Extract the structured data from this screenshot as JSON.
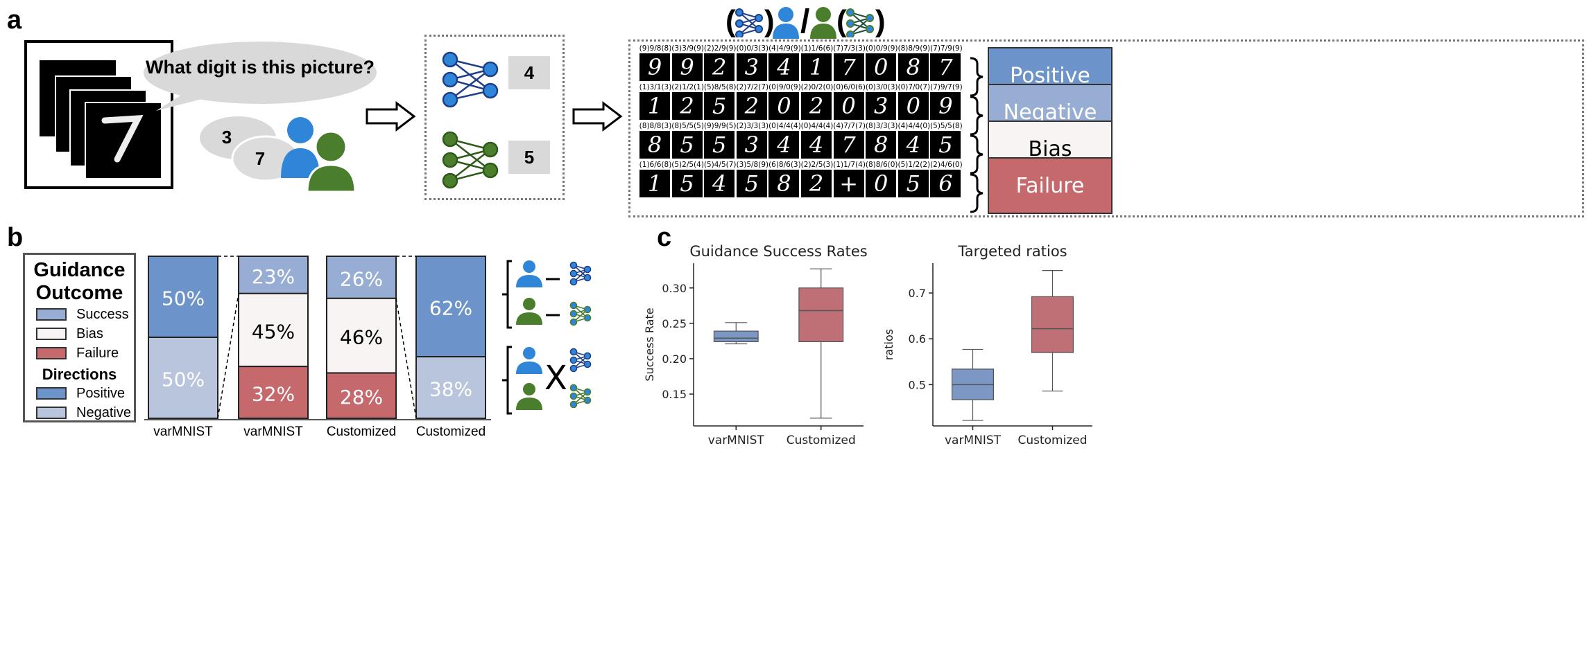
{
  "panels": {
    "a": "a",
    "b": "b",
    "c": "c"
  },
  "panel_a": {
    "question": "What digit is this picture?",
    "human_answers": [
      "3",
      "7"
    ],
    "model_answers": [
      "4",
      "5"
    ],
    "digit_captions": [
      [
        "(9)9/8(8)",
        "(3)3/9(9)",
        "(2)2/9(9)",
        "(0)0/3(3)",
        "(4)4/9(9)",
        "(1)1/6(6)",
        "(7)7/3(3)",
        "(0)0/9(9)",
        "(8)8/9(9)",
        "(7)7/9(9)"
      ],
      [
        "(1)3/1(3)",
        "(2)1/2(1)",
        "(5)8/5(8)",
        "(2)7/2(7)",
        "(0)9/0(9)",
        "(2)0/2(0)",
        "(0)6/0(6)",
        "(0)3/0(3)",
        "(0)7/0(7)",
        "(7)9/7(9)"
      ],
      [
        "(8)8/8(3)",
        "(8)5/5(5)",
        "(9)9/9(5)",
        "(2)3/3(3)",
        "(0)4/4(4)",
        "(0)4/4(4)",
        "(4)7/7(7)",
        "(8)3/3(3)",
        "(4)4/4(0)",
        "(5)5/5(8)"
      ],
      [
        "(1)6/6(8)",
        "(5)2/5(4)",
        "(5)4/5(7)",
        "(3)5/8(9)",
        "(6)8/6(3)",
        "(2)2/5(3)",
        "(1)1/7(4)",
        "(8)8/6(0)",
        "(5)1/2(2)",
        "(2)4/6(0)"
      ]
    ],
    "digit_glyphs": [
      [
        "9",
        "9",
        "2",
        "3",
        "4",
        "1",
        "7",
        "0",
        "8",
        "7"
      ],
      [
        "1",
        "2",
        "5",
        "2",
        "0",
        "2",
        "0",
        "3",
        "0",
        "9"
      ],
      [
        "8",
        "5",
        "5",
        "3",
        "4",
        "4",
        "7",
        "8",
        "4",
        "5"
      ],
      [
        "1",
        "5",
        "4",
        "5",
        "8",
        "2",
        "+",
        "0",
        "5",
        "6"
      ]
    ],
    "directions": [
      "Positive",
      "Negative",
      "Bias",
      "Failure"
    ],
    "header_slash": "/",
    "paren_open": "(",
    "paren_close": ")"
  },
  "panel_b": {
    "legend": {
      "title1_a": "Guidance",
      "title1_b": "Outcome",
      "items1": [
        "Success",
        "Bias",
        "Failure"
      ],
      "title2": "Directions",
      "items2": [
        "Positive",
        "Negative"
      ]
    },
    "bars": [
      {
        "label": "varMNIST",
        "segments": [
          {
            "text": "50%",
            "value": 50
          },
          {
            "text": "50%",
            "value": 50
          }
        ]
      },
      {
        "label": "varMNIST",
        "segments": [
          {
            "text": "23%",
            "value": 23
          },
          {
            "text": "45%",
            "value": 45
          },
          {
            "text": "32%",
            "value": 32
          }
        ]
      },
      {
        "label": "Customized",
        "segments": [
          {
            "text": "26%",
            "value": 26
          },
          {
            "text": "46%",
            "value": 46
          },
          {
            "text": "28%",
            "value": 28
          }
        ]
      },
      {
        "label": "Customized",
        "segments": [
          {
            "text": "62%",
            "value": 62
          },
          {
            "text": "38%",
            "value": 38
          }
        ]
      }
    ],
    "relation_cross": "X"
  },
  "colors": {
    "positive": "#6d93cb",
    "negative": "#b8c5dd",
    "success": "#97add3",
    "bias": "#f7f4f3",
    "failure": "#c6696c",
    "human_blue": "#2f86d8",
    "human_green": "#4a7e2c",
    "net_blue": "#2f86d8",
    "net_green": "#4a7e2c"
  },
  "chart_data": [
    {
      "type": "box",
      "title": "Guidance Success Rates",
      "ylabel": "Success Rate",
      "xlabel": "",
      "categories": [
        "varMNIST",
        "Customized"
      ],
      "ylim": [
        0.105,
        0.335
      ],
      "yticks": [
        0.15,
        0.2,
        0.25,
        0.3
      ],
      "ytick_labels": [
        "0.15",
        "0.20",
        "0.25",
        "0.30"
      ],
      "boxes": [
        {
          "whisker_low": 0.221,
          "q1": 0.224,
          "median": 0.229,
          "q3": 0.239,
          "whisker_high": 0.251
        },
        {
          "whisker_low": 0.116,
          "q1": 0.224,
          "median": 0.268,
          "q3": 0.3,
          "whisker_high": 0.327
        }
      ],
      "colors": [
        "#7d97c4",
        "#bf7076"
      ]
    },
    {
      "type": "box",
      "title": "Targeted ratios",
      "ylabel": "ratios",
      "xlabel": "",
      "categories": [
        "varMNIST",
        "Customized"
      ],
      "ylim": [
        0.41,
        0.765
      ],
      "yticks": [
        0.5,
        0.6,
        0.7
      ],
      "ytick_labels": [
        "0.5",
        "0.6",
        "0.7"
      ],
      "boxes": [
        {
          "whisker_low": 0.422,
          "q1": 0.467,
          "median": 0.5,
          "q3": 0.534,
          "whisker_high": 0.577
        },
        {
          "whisker_low": 0.486,
          "q1": 0.57,
          "median": 0.622,
          "q3": 0.692,
          "whisker_high": 0.749
        }
      ],
      "colors": [
        "#7d97c4",
        "#bf7076"
      ]
    }
  ]
}
